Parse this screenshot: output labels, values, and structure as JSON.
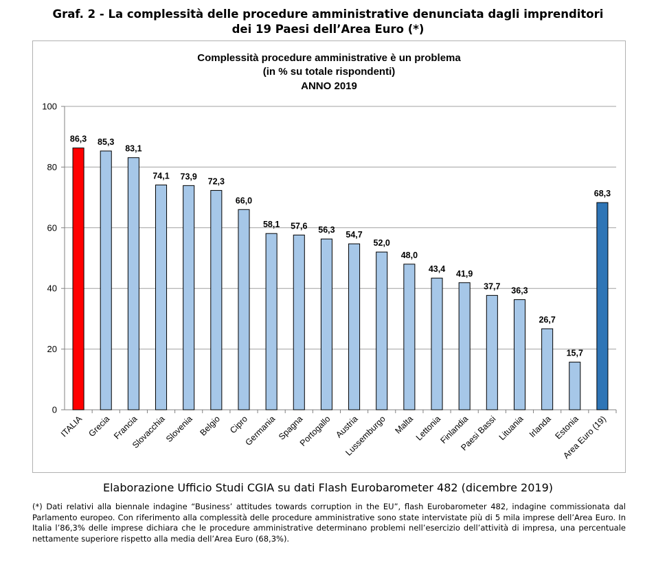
{
  "figure_title_line1": "Graf. 2 - La complessità delle procedure amministrative denunciata dagli imprenditori",
  "figure_title_line2": "dei 19 Paesi dell’Area Euro (*)",
  "source_text": "Elaborazione Ufficio Studi CGIA su dati Flash Eurobarometer 482 (dicembre 2019)",
  "note_text": "(*) Dati relativi alla biennale indagine “Business’ attitudes towards corruption in the EU”, flash Eurobarometer 482, indagine commissionata dal Parlamento europeo. Con riferimento alla complessità delle procedure amministrative sono state intervistate più di 5 mila imprese dell’Area Euro. In Italia l’86,3% delle imprese dichiara che le procedure amministrative determinano problemi nell’esercizio dell’attività di impresa, una percentuale nettamente superiore rispetto alla media dell’Area Euro (68,3%).",
  "chart_data": {
    "type": "bar",
    "title_lines": [
      "Complessità procedure amministrative è un problema",
      "(in % su totale rispondenti)",
      "ANNO 2019"
    ],
    "categories": [
      "ITALIA",
      "Grecia",
      "Francia",
      "Slovacchia",
      "Slovenia",
      "Belgio",
      "Cipro",
      "Germania",
      "Spagna",
      "Portogallo",
      "Austria",
      "Lussemburgo",
      "Malta",
      "Lettonia",
      "Finlandia",
      "Paesi Bassi",
      "Lituania",
      "Irlanda",
      "Estonia",
      "Area Euro (19)"
    ],
    "values": [
      86.3,
      85.3,
      83.1,
      74.1,
      73.9,
      72.3,
      66.0,
      58.1,
      57.6,
      56.3,
      54.7,
      52.0,
      48.0,
      43.4,
      41.9,
      37.7,
      36.3,
      26.7,
      15.7,
      68.3
    ],
    "value_labels": [
      "86,3",
      "85,3",
      "83,1",
      "74,1",
      "73,9",
      "72,3",
      "66,0",
      "58,1",
      "57,6",
      "56,3",
      "54,7",
      "52,0",
      "48,0",
      "43,4",
      "41,9",
      "37,7",
      "36,3",
      "26,7",
      "15,7",
      "68,3"
    ],
    "bar_colors": [
      "#ff0000",
      "#a6c7e8",
      "#a6c7e8",
      "#a6c7e8",
      "#a6c7e8",
      "#a6c7e8",
      "#a6c7e8",
      "#a6c7e8",
      "#a6c7e8",
      "#a6c7e8",
      "#a6c7e8",
      "#a6c7e8",
      "#a6c7e8",
      "#a6c7e8",
      "#a6c7e8",
      "#a6c7e8",
      "#a6c7e8",
      "#a6c7e8",
      "#a6c7e8",
      "#2e75b6"
    ],
    "ylim": [
      0,
      100
    ],
    "yticks": [
      0,
      20,
      40,
      60,
      80,
      100
    ],
    "grid": true,
    "legend": "none"
  }
}
